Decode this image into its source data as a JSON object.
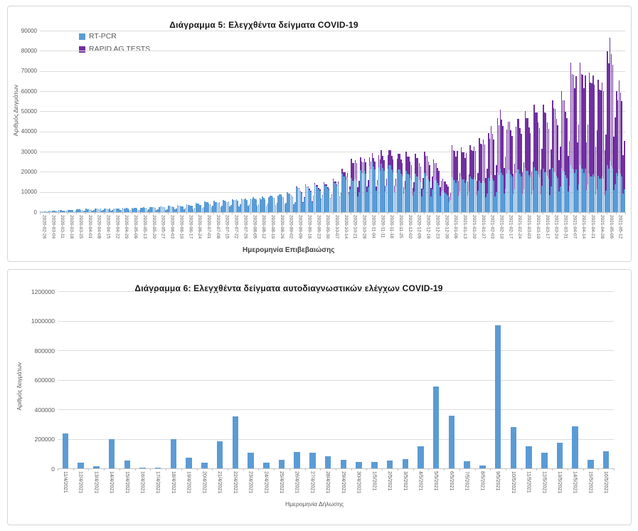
{
  "chart_data": [
    {
      "type": "bar",
      "stacked": true,
      "title": "Διάγραμμα 5: Ελεγχθέντα δείγματα COVID-19",
      "xlabel": "Ημερομηνία Επιβεβαιώσης",
      "ylabel": "Αριθμός Δειγμάτων",
      "ylim": [
        0,
        90000
      ],
      "ytick_step": 10000,
      "grid": true,
      "legend_position": "top-left",
      "x_tick_unit": "week",
      "bar_unit": "day",
      "note": "Daily stacked bars; tick labels weekly. Series values are estimated typical weekday levels per labeled week; daily bars = weekly level x weekday_profile.",
      "weekday_profile": [
        1.0,
        0.95,
        0.97,
        0.9,
        0.86,
        0.45,
        0.58
      ],
      "categories": [
        "2020-02-26",
        "2020-03-04",
        "2020-03-11",
        "2020-03-18",
        "2020-03-25",
        "2020-04-01",
        "2020-04-08",
        "2020-04-15",
        "2020-04-22",
        "2020-04-29",
        "2020-05-06",
        "2020-05-13",
        "2020-05-20",
        "2020-05-27",
        "2020-06-03",
        "2020-06-10",
        "2020-06-17",
        "2020-06-24",
        "2020-07-01",
        "2020-07-08",
        "2020-07-15",
        "2020-07-22",
        "2020-07-29",
        "2020-08-05",
        "2020-08-12",
        "2020-08-19",
        "2020-08-26",
        "2020-09-02",
        "2020-09-09",
        "2020-09-16",
        "2020-09-23",
        "2020-09-30",
        "2020-10-07",
        "2020-10-14",
        "2020-10-21",
        "2020-10-28",
        "2020-11-04",
        "2020-11-11",
        "2020-11-18",
        "2020-11-25",
        "2020-12-02",
        "2020-12-09",
        "2020-12-16",
        "2020-12-23",
        "2020-12-30",
        "2021-01-06",
        "2021-01-13",
        "2021-01-20",
        "2021-01-27",
        "2021-02-03",
        "2021-02-10",
        "2021-02-17",
        "2021-02-24",
        "2021-03-03",
        "2021-03-10",
        "2021-03-17",
        "2021-03-24",
        "2021-03-31",
        "2021-04-07",
        "2021-04-14",
        "2021-04-21",
        "2021-04-28",
        "2021-05-05",
        "2021-05-12"
      ],
      "series": [
        {
          "name": "RT-PCR",
          "color": "#5B9BD5",
          "weekly_values": [
            400,
            700,
            1000,
            1200,
            1400,
            1600,
            1800,
            1900,
            2000,
            2100,
            2200,
            2400,
            2600,
            2900,
            3100,
            3400,
            3800,
            4400,
            5200,
            5600,
            6100,
            6600,
            7100,
            7300,
            7600,
            8300,
            8900,
            9600,
            12000,
            13000,
            13600,
            14200,
            15800,
            19500,
            17500,
            22000,
            24500,
            24000,
            23500,
            21500,
            19500,
            18500,
            19000,
            17000,
            10500,
            17500,
            18000,
            18500,
            16500,
            18000,
            21500,
            21000,
            21500,
            21000,
            21500,
            21000,
            21500,
            22000,
            23500,
            24000,
            20000,
            19000,
            25000,
            21000
          ]
        },
        {
          "name": "RAPID AG TESTS",
          "color": "#7030A0",
          "weekly_values": [
            0,
            0,
            0,
            0,
            0,
            0,
            0,
            0,
            0,
            0,
            0,
            0,
            0,
            0,
            0,
            0,
            0,
            0,
            0,
            0,
            0,
            0,
            0,
            0,
            0,
            0,
            0,
            0,
            400,
            500,
            600,
            700,
            900,
            2500,
            10000,
            6500,
            4500,
            6500,
            7500,
            8000,
            9000,
            9500,
            10500,
            9000,
            6000,
            16000,
            15000,
            16000,
            22000,
            24000,
            29000,
            24000,
            25500,
            27000,
            30000,
            31000,
            33500,
            38000,
            51500,
            52000,
            52000,
            50000,
            60000,
            44000
          ]
        }
      ]
    },
    {
      "type": "bar",
      "stacked": false,
      "title": "Διάγραμμα 6: Ελεγχθέντα δείγματα αυτοδιαγνωστικών ελέγχων COVID-19",
      "xlabel": "Ημερομηνία Δήλωσης",
      "ylabel": "Αριθμός δειγμάτων",
      "ylim": [
        0,
        1200000
      ],
      "ytick_step": 200000,
      "grid": true,
      "color": "#5B9BD5",
      "categories": [
        "11/4/2021",
        "12/4/2021",
        "13/4/2021",
        "14/4/2021",
        "15/4/2021",
        "16/4/2021",
        "17/4/2021",
        "18/4/2021",
        "19/4/2021",
        "20/4/2021",
        "21/4/2021",
        "22/4/2021",
        "23/4/2021",
        "24/4/2021",
        "25/4/2021",
        "26/4/2021",
        "27/4/2021",
        "28/4/2021",
        "29/4/2021",
        "30/4/2021",
        "1/5/2021",
        "2/5/2021",
        "3/5/2021",
        "4/5/2021",
        "5/5/2021",
        "6/5/2021",
        "7/5/2021",
        "8/5/2021",
        "9/5/2021",
        "10/5/2021",
        "11/5/2021",
        "12/5/2021",
        "13/5/2021",
        "14/5/2021",
        "15/5/2021",
        "16/5/2021"
      ],
      "values": [
        235000,
        40000,
        15000,
        200000,
        52000,
        4000,
        4000,
        200000,
        70000,
        37000,
        185000,
        350000,
        107000,
        37000,
        60000,
        112000,
        108000,
        80000,
        60000,
        45000,
        45000,
        52000,
        64000,
        148000,
        552000,
        355000,
        48000,
        21000,
        970000,
        282000,
        150000,
        104000,
        172000,
        283000,
        60000,
        118000
      ]
    }
  ]
}
